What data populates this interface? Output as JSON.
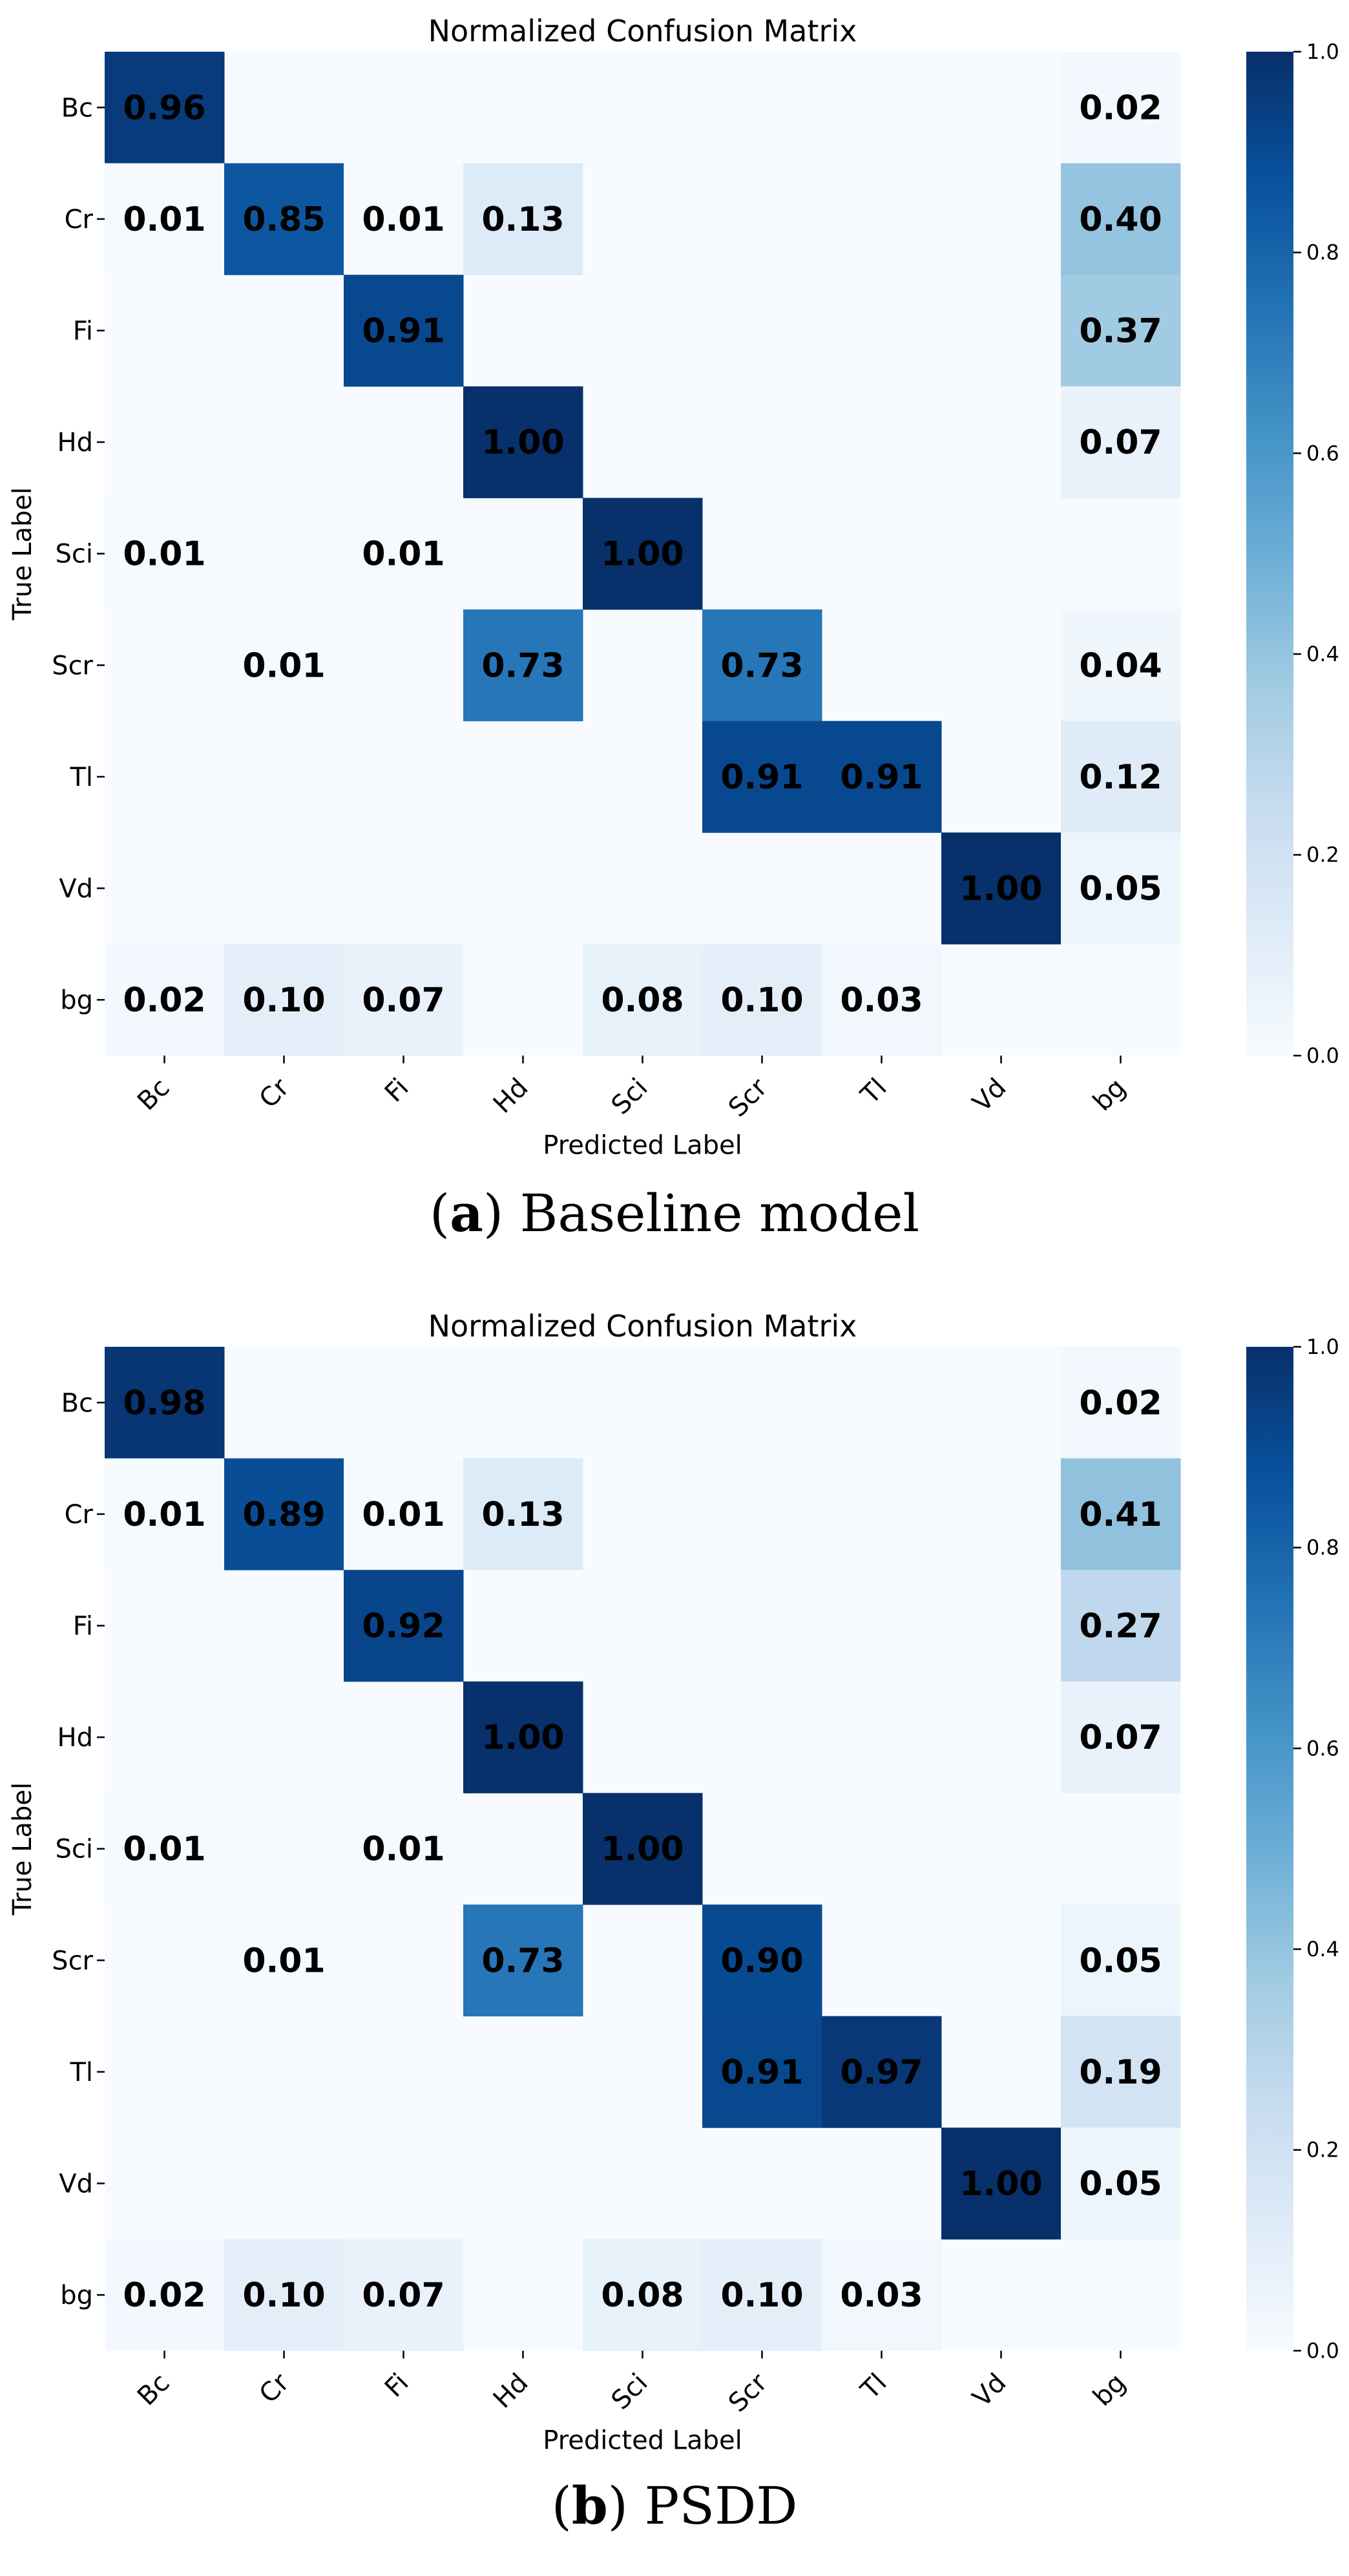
{
  "figure": {
    "panels": [
      {
        "caption_letter": "a",
        "caption_open": "(",
        "caption_close": ")",
        "caption_text": " Baseline model"
      },
      {
        "caption_letter": "b",
        "caption_open": "(",
        "caption_close": ")",
        "caption_text": " PSDD"
      }
    ]
  },
  "chart_data": [
    {
      "type": "heatmap",
      "title": "Normalized Confusion Matrix",
      "xlabel": "Predicted Label",
      "ylabel": "True Label",
      "x_categories": [
        "Bc",
        "Cr",
        "Fi",
        "Hd",
        "Sci",
        "Scr",
        "Tl",
        "Vd",
        "bg"
      ],
      "y_categories": [
        "Bc",
        "Cr",
        "Fi",
        "Hd",
        "Sci",
        "Scr",
        "Tl",
        "Vd",
        "bg"
      ],
      "values": [
        [
          0.96,
          null,
          null,
          null,
          null,
          null,
          null,
          null,
          0.02
        ],
        [
          0.01,
          0.85,
          0.01,
          0.13,
          null,
          null,
          null,
          null,
          0.4
        ],
        [
          null,
          null,
          0.91,
          null,
          null,
          null,
          null,
          null,
          0.37
        ],
        [
          null,
          null,
          null,
          1.0,
          null,
          null,
          null,
          null,
          0.07
        ],
        [
          0.01,
          null,
          0.01,
          null,
          1.0,
          null,
          null,
          null,
          null
        ],
        [
          null,
          0.01,
          null,
          0.73,
          null,
          0.73,
          null,
          null,
          0.04
        ],
        [
          null,
          null,
          null,
          null,
          null,
          0.91,
          0.91,
          null,
          0.12
        ],
        [
          null,
          null,
          null,
          null,
          null,
          null,
          null,
          1.0,
          0.05
        ],
        [
          0.02,
          0.1,
          0.07,
          null,
          0.08,
          0.1,
          0.03,
          null,
          null
        ]
      ],
      "colormap": "Blues",
      "colorbar": {
        "range": [
          0.0,
          1.0
        ],
        "ticks": [
          "0.0",
          "0.2",
          "0.4",
          "0.6",
          "0.8",
          "1.0"
        ]
      },
      "annotation_color": "#000000"
    },
    {
      "type": "heatmap",
      "title": "Normalized Confusion Matrix",
      "xlabel": "Predicted Label",
      "ylabel": "True Label",
      "x_categories": [
        "Bc",
        "Cr",
        "Fi",
        "Hd",
        "Sci",
        "Scr",
        "Tl",
        "Vd",
        "bg"
      ],
      "y_categories": [
        "Bc",
        "Cr",
        "Fi",
        "Hd",
        "Sci",
        "Scr",
        "Tl",
        "Vd",
        "bg"
      ],
      "values": [
        [
          0.98,
          null,
          null,
          null,
          null,
          null,
          null,
          null,
          0.02
        ],
        [
          0.01,
          0.89,
          0.01,
          0.13,
          null,
          null,
          null,
          null,
          0.41
        ],
        [
          null,
          null,
          0.92,
          null,
          null,
          null,
          null,
          null,
          0.27
        ],
        [
          null,
          null,
          null,
          1.0,
          null,
          null,
          null,
          null,
          0.07
        ],
        [
          0.01,
          null,
          0.01,
          null,
          1.0,
          null,
          null,
          null,
          null
        ],
        [
          null,
          0.01,
          null,
          0.73,
          null,
          0.9,
          null,
          null,
          0.05
        ],
        [
          null,
          null,
          null,
          null,
          null,
          0.91,
          0.97,
          null,
          0.19
        ],
        [
          null,
          null,
          null,
          null,
          null,
          null,
          null,
          1.0,
          0.05
        ],
        [
          0.02,
          0.1,
          0.07,
          null,
          0.08,
          0.1,
          0.03,
          null,
          null
        ]
      ],
      "colormap": "Blues",
      "colorbar": {
        "range": [
          0.0,
          1.0
        ],
        "ticks": [
          "0.0",
          "0.2",
          "0.4",
          "0.6",
          "0.8",
          "1.0"
        ]
      },
      "annotation_color": "#000000"
    }
  ]
}
